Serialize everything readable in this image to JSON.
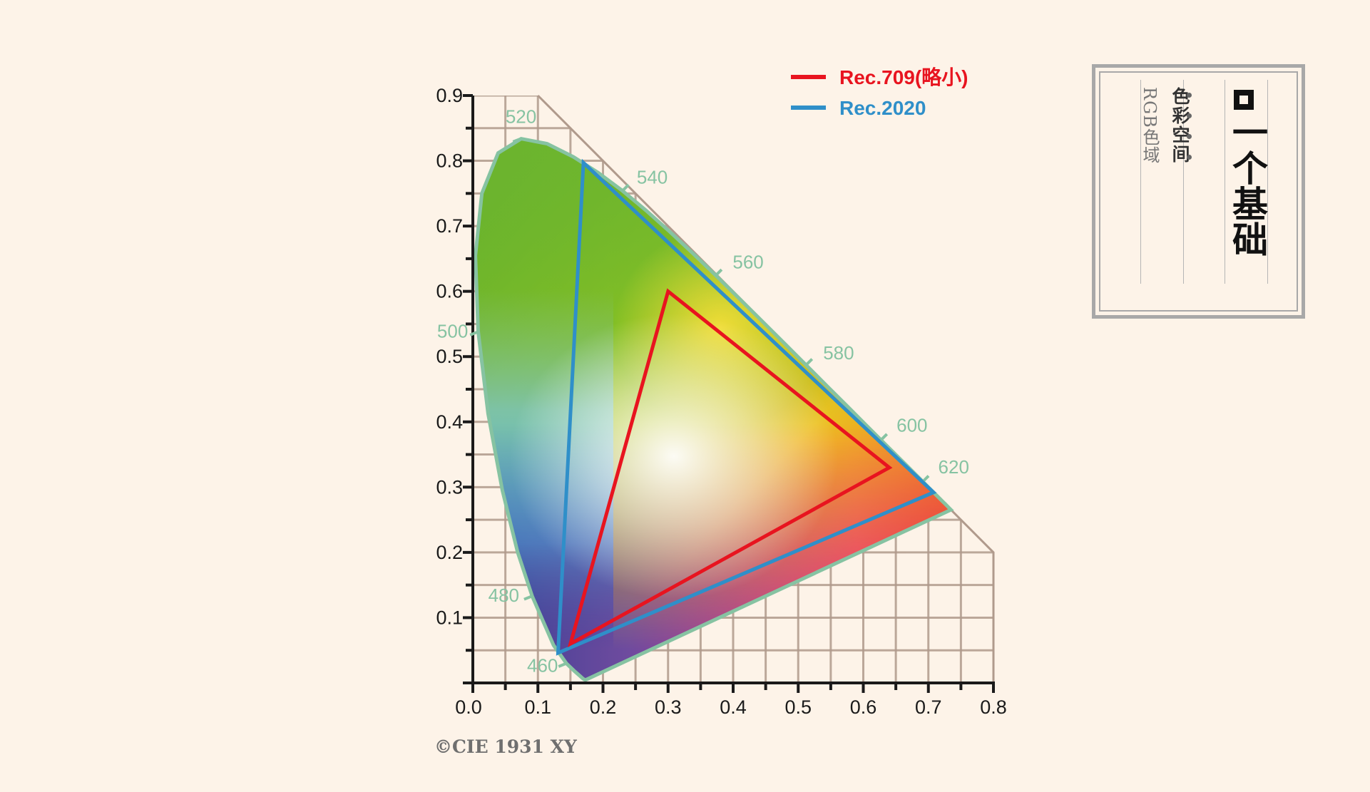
{
  "chart_data": {
    "type": "scatter",
    "title": "",
    "xlim": [
      0.0,
      0.8
    ],
    "ylim": [
      0.0,
      0.9
    ],
    "x_ticks": [
      "0.0",
      "0.1",
      "0.2",
      "0.3",
      "0.4",
      "0.5",
      "0.6",
      "0.7",
      "0.8"
    ],
    "y_ticks": [
      "0.1",
      "0.2",
      "0.3",
      "0.4",
      "0.5",
      "0.6",
      "0.7",
      "0.8",
      "0.9"
    ],
    "grid": true,
    "legend_position": "top-right",
    "spectral_locus": {
      "wavelength_labels": [
        {
          "label": "460",
          "x": 0.144,
          "y": 0.03
        },
        {
          "label": "480",
          "x": 0.091,
          "y": 0.133
        },
        {
          "label": "500",
          "x": 0.008,
          "y": 0.538
        },
        {
          "label": "520",
          "x": 0.074,
          "y": 0.834
        },
        {
          "label": "540",
          "x": 0.23,
          "y": 0.754
        },
        {
          "label": "560",
          "x": 0.373,
          "y": 0.624
        },
        {
          "label": "580",
          "x": 0.512,
          "y": 0.487
        },
        {
          "label": "600",
          "x": 0.627,
          "y": 0.372
        },
        {
          "label": "620",
          "x": 0.691,
          "y": 0.308
        }
      ]
    },
    "series": [
      {
        "name": "Rec.709(略小)",
        "color": "#e8141f",
        "points": [
          [
            0.64,
            0.33
          ],
          [
            0.3,
            0.6
          ],
          [
            0.15,
            0.06
          ]
        ]
      },
      {
        "name": "Rec.2020",
        "color": "#2f8fc9",
        "points": [
          [
            0.708,
            0.292
          ],
          [
            0.17,
            0.797
          ],
          [
            0.131,
            0.046
          ]
        ]
      }
    ]
  },
  "copyright": "©CIE 1931 XY",
  "badge": {
    "title": "一个基础",
    "subtitle": "色彩空间",
    "caption": "RGB色域"
  }
}
